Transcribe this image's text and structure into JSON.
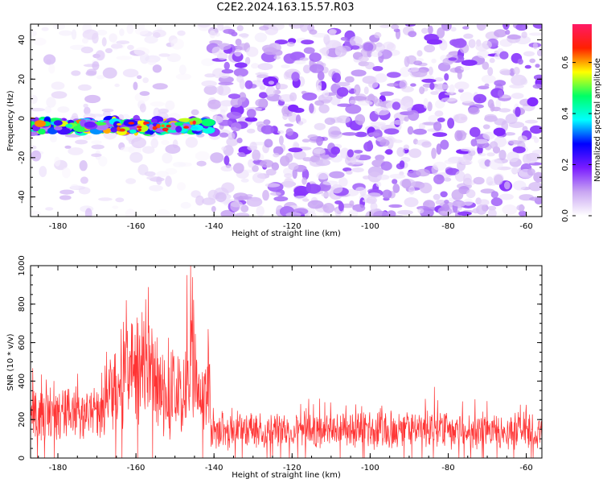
{
  "title": "C2E2.2024.163.15.57.R03",
  "chart_data": [
    {
      "type": "heatmap",
      "xlabel": "Height of straight line (km)",
      "ylabel": "Frequency (Hz)",
      "xlim": [
        -187,
        -56
      ],
      "ylim": [
        -50,
        48
      ],
      "xticks": [
        -180,
        -160,
        -140,
        -120,
        -100,
        -80,
        -60
      ],
      "yticks": [
        -40,
        -20,
        0,
        20,
        40
      ],
      "colorbar": {
        "label": "Normalized spectral amplitude",
        "range": [
          0,
          0.75
        ],
        "ticks": [
          0.0,
          0.2,
          0.4,
          0.6
        ],
        "colormap": [
          "#ffffff",
          "#c9a6f2",
          "#7a1cff",
          "#0000ff",
          "#00ffff",
          "#00ff66",
          "#ffff00",
          "#ff2000",
          "#ff1a66"
        ]
      },
      "signal_band": {
        "x_range": [
          -187,
          -141
        ],
        "freq_center": -4,
        "freq_halfwidth": 4
      },
      "noise_boundary_x": -141,
      "grid": false
    },
    {
      "type": "line",
      "xlabel": "Height of straight line (km)",
      "ylabel": "SNR (10 * v/v)",
      "xlim": [
        -187,
        -56
      ],
      "ylim": [
        0,
        1000
      ],
      "xticks": [
        -180,
        -160,
        -140,
        -120,
        -100,
        -80,
        -60
      ],
      "yticks": [
        0,
        200,
        400,
        600,
        800,
        1000
      ],
      "line_color": "#ff3333",
      "segments": [
        {
          "x_range": [
            -187,
            -168
          ],
          "level": 230,
          "spread": 160
        },
        {
          "x_range": [
            -168,
            -163
          ],
          "level": 350,
          "spread": 250
        },
        {
          "x_range": [
            -163,
            -155
          ],
          "level": 480,
          "spread": 350
        },
        {
          "x_range": [
            -155,
            -148
          ],
          "level": 330,
          "spread": 250
        },
        {
          "x_range": [
            -148,
            -144
          ],
          "level": 480,
          "spread": 380
        },
        {
          "x_range": [
            -144,
            -141
          ],
          "level": 330,
          "spread": 250
        },
        {
          "x_range": [
            -141,
            -56
          ],
          "level": 145,
          "spread": 110
        }
      ],
      "peaks": [
        {
          "x": -162.5,
          "y": 820
        },
        {
          "x": -157.5,
          "y": 825
        },
        {
          "x": -146,
          "y": 1000
        },
        {
          "x": -145.5,
          "y": 940
        },
        {
          "x": -141.5,
          "y": 670
        },
        {
          "x": -83.5,
          "y": 370
        }
      ],
      "grid": false
    }
  ]
}
